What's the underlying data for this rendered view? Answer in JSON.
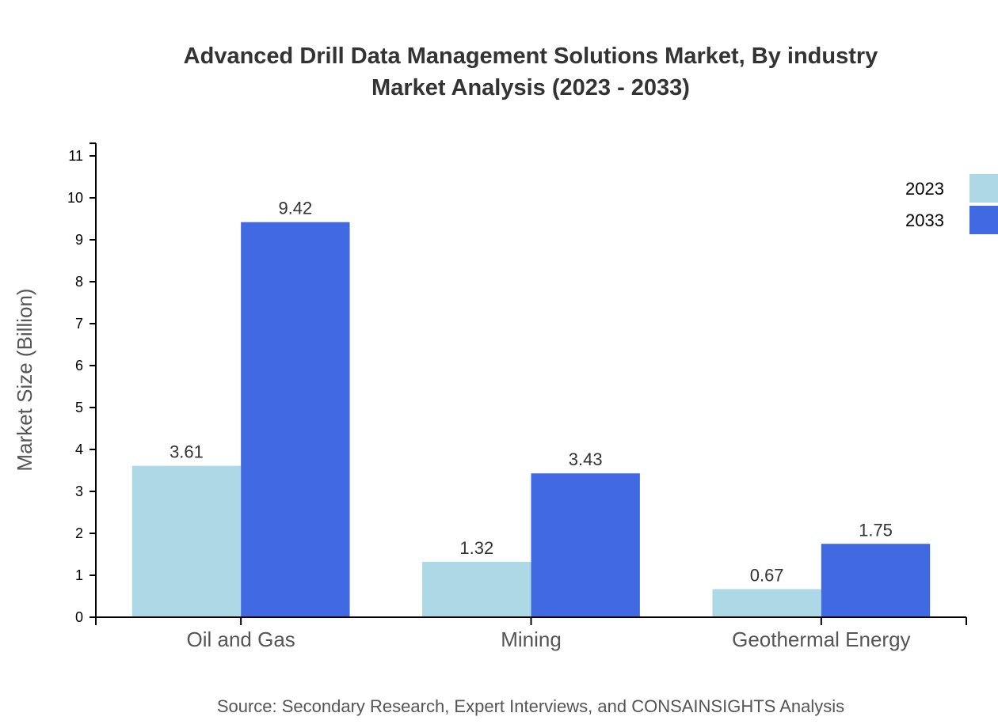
{
  "chart_data": {
    "type": "bar",
    "title": "Advanced Drill Data Management Solutions Market, By industry",
    "subtitle": "Market Analysis (2023 - 2033)",
    "xlabel": "",
    "ylabel": "Market Size (Billion)",
    "ylim": [
      0,
      11.3
    ],
    "yticks": [
      "0",
      "1",
      "2",
      "3",
      "4",
      "5",
      "6",
      "7",
      "8",
      "9",
      "10",
      "11"
    ],
    "categories": [
      "Oil and Gas",
      "Mining",
      "Geothermal Energy"
    ],
    "series": [
      {
        "name": "2023",
        "color": "#ADD8E6",
        "values": [
          3.61,
          1.32,
          0.67
        ],
        "labels": [
          "3.61",
          "1.32",
          "0.67"
        ]
      },
      {
        "name": "2033",
        "color": "#4169E1",
        "values": [
          9.42,
          3.43,
          1.75
        ],
        "labels": [
          "9.42",
          "3.43",
          "1.75"
        ]
      }
    ],
    "grid": false,
    "legend_position": "top-right",
    "source": "Source: Secondary Research, Expert Interviews, and CONSAINSIGHTS Analysis"
  }
}
